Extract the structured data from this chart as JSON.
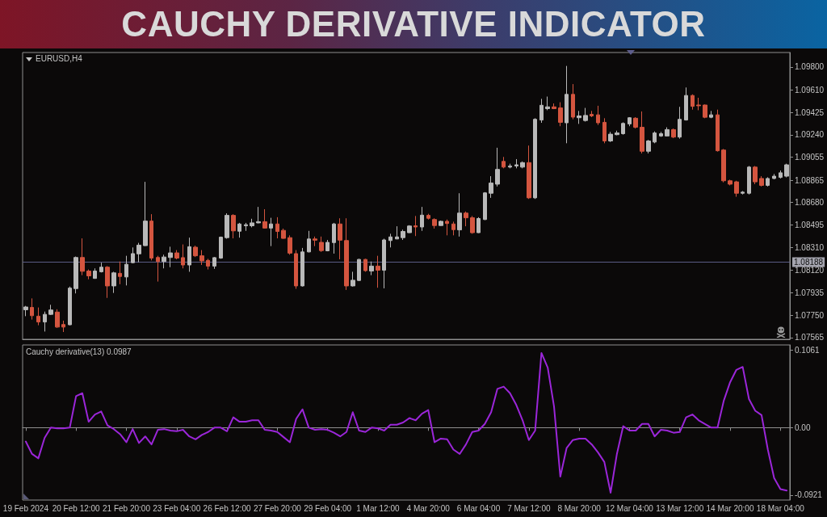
{
  "chart_data": [
    {
      "type": "candlestick",
      "title": "CAUCHY DERIVATIVE INDICATOR",
      "subtitle": "EURUSD,H4",
      "categories": [
        null,
        null,
        null,
        null,
        null,
        null,
        null,
        null,
        null,
        null,
        null,
        null,
        null,
        null,
        null,
        null,
        null,
        null,
        null,
        null,
        null,
        null,
        null,
        null,
        null,
        null,
        null,
        null,
        null,
        null,
        null,
        null,
        null,
        null,
        null,
        null,
        null,
        null,
        null,
        null,
        null,
        null,
        null,
        null,
        null,
        null,
        null,
        null,
        null,
        null,
        null,
        null,
        null,
        null,
        null,
        null,
        null,
        null,
        null,
        null,
        null,
        null,
        null,
        null,
        null,
        null,
        null,
        null,
        null,
        null,
        null,
        null,
        null,
        null,
        null,
        null,
        null,
        null,
        null,
        null,
        null,
        null,
        null,
        null,
        null,
        null,
        null,
        null,
        null,
        null,
        null,
        null,
        null,
        null,
        null,
        null,
        null,
        null,
        null,
        null,
        null,
        null,
        null,
        null,
        null,
        null,
        null,
        null,
        null,
        null,
        null,
        null,
        null,
        null,
        null,
        null,
        null,
        null,
        null,
        null,
        null,
        null
      ],
      "ohlc": [
        [
          1.07794,
          1.07826,
          1.07741,
          1.07817
        ],
        [
          1.07813,
          1.07888,
          1.07713,
          1.07745
        ],
        [
          1.07741,
          1.07813,
          1.07666,
          1.07693
        ],
        [
          1.07693,
          1.07779,
          1.07614,
          1.07756
        ],
        [
          1.07756,
          1.07835,
          1.07751,
          1.07792
        ],
        [
          1.07775,
          1.07798,
          1.07644,
          1.07651
        ],
        [
          1.07672,
          1.07704,
          1.0761,
          1.07651
        ],
        [
          1.0767,
          1.07986,
          1.07666,
          1.07973
        ],
        [
          1.07969,
          1.08234,
          1.07929,
          1.08226
        ],
        [
          1.08226,
          1.08384,
          1.0808,
          1.08112
        ],
        [
          1.08114,
          1.08127,
          1.08046,
          1.08074
        ],
        [
          1.08053,
          1.08136,
          1.0805,
          1.08114
        ],
        [
          1.08108,
          1.08183,
          1.08102,
          1.08146
        ],
        [
          1.08146,
          1.08155,
          1.07892,
          1.07991
        ],
        [
          1.07991,
          1.08108,
          1.07933,
          1.08099
        ],
        [
          1.08095,
          1.08193,
          1.08005,
          1.08069
        ],
        [
          1.08065,
          1.0824,
          1.07995,
          1.0817
        ],
        [
          1.08183,
          1.08309,
          1.08178,
          1.08258
        ],
        [
          1.08256,
          1.08347,
          1.08187,
          1.08328
        ],
        [
          1.08324,
          1.08851,
          1.0832,
          1.08527
        ],
        [
          1.08527,
          1.08584,
          1.08202,
          1.08221
        ],
        [
          1.08226,
          1.0824,
          1.08027,
          1.08193
        ],
        [
          1.08193,
          1.08249,
          1.08136,
          1.0823
        ],
        [
          1.08226,
          1.08315,
          1.08146,
          1.08264
        ],
        [
          1.08264,
          1.08287,
          1.08211,
          1.08221
        ],
        [
          1.08225,
          1.08334,
          1.08136,
          1.08164
        ],
        [
          1.08164,
          1.0839,
          1.08108,
          1.08315
        ],
        [
          1.08311,
          1.08324,
          1.0823,
          1.0824
        ],
        [
          1.0824,
          1.08287,
          1.08164,
          1.08198
        ],
        [
          1.08202,
          1.08215,
          1.08127,
          1.08155
        ],
        [
          1.08155,
          1.0823,
          1.08132,
          1.08225
        ],
        [
          1.08221,
          1.08399,
          1.08215,
          1.08394
        ],
        [
          1.0839,
          1.08591,
          1.08381,
          1.08574
        ],
        [
          1.08574,
          1.08584,
          1.08384,
          1.08446
        ],
        [
          1.08443,
          1.08512,
          1.0839,
          1.08503
        ],
        [
          1.08488,
          1.08512,
          1.08446,
          1.08497
        ],
        [
          1.08488,
          1.08546,
          1.08475,
          1.08512
        ],
        [
          1.08512,
          1.08644,
          1.08508,
          1.08522
        ],
        [
          1.08522,
          1.08625,
          1.08465,
          1.08469
        ],
        [
          1.08469,
          1.08554,
          1.0832,
          1.08503
        ],
        [
          1.08503,
          1.08559,
          1.08384,
          1.08441
        ],
        [
          1.0845,
          1.08465,
          1.08381,
          1.08384
        ],
        [
          1.0839,
          1.08409,
          1.08249,
          1.08262
        ],
        [
          1.08258,
          1.08287,
          1.07967,
          1.07991
        ],
        [
          1.07991,
          1.08305,
          1.07986,
          1.08272
        ],
        [
          1.08272,
          1.08446,
          1.08268,
          1.08379
        ],
        [
          1.08379,
          1.08399,
          1.0832,
          1.08369
        ],
        [
          1.08351,
          1.08399,
          1.08272,
          1.08283
        ],
        [
          1.08281,
          1.08371,
          1.08277,
          1.08351
        ],
        [
          1.08349,
          1.08512,
          1.08258,
          1.08503
        ],
        [
          1.08503,
          1.0855,
          1.08211,
          1.08369
        ],
        [
          1.08366,
          1.0855,
          1.07958,
          1.07991
        ],
        [
          1.07991,
          1.08108,
          1.07986,
          1.08038
        ],
        [
          1.08036,
          1.08215,
          1.08031,
          1.0821
        ],
        [
          1.0821,
          1.08215,
          1.08108,
          1.08117
        ],
        [
          1.08114,
          1.08193,
          1.0808,
          1.08155
        ],
        [
          1.08155,
          1.0824,
          1.07976,
          1.08121
        ],
        [
          1.08121,
          1.08381,
          1.07971,
          1.08371
        ],
        [
          1.08366,
          1.08422,
          1.08309,
          1.08396
        ],
        [
          1.08379,
          1.08484,
          1.08377,
          1.08396
        ],
        [
          1.0839,
          1.08456,
          1.08371,
          1.08441
        ],
        [
          1.08431,
          1.08493,
          1.08428,
          1.08486
        ],
        [
          1.08488,
          1.08569,
          1.08403,
          1.08478
        ],
        [
          1.08478,
          1.08644,
          1.08446,
          1.08576
        ],
        [
          1.08574,
          1.08587,
          1.0854,
          1.0855
        ],
        [
          1.0854,
          1.0855,
          1.08465,
          1.0849
        ],
        [
          1.0849,
          1.08531,
          1.08488,
          1.08525
        ],
        [
          1.08525,
          1.0854,
          1.08409,
          1.08507
        ],
        [
          1.08503,
          1.08522,
          1.08409,
          1.08456
        ],
        [
          1.08454,
          1.08757,
          1.08399,
          1.08593
        ],
        [
          1.08593,
          1.08606,
          1.08484,
          1.08554
        ],
        [
          1.08554,
          1.08569,
          1.08422,
          1.08431
        ],
        [
          1.08431,
          1.08559,
          1.08428,
          1.08548
        ],
        [
          1.0854,
          1.08766,
          1.08535,
          1.0876
        ],
        [
          1.08757,
          1.08898,
          1.08719,
          1.08841
        ],
        [
          1.08832,
          1.09133,
          1.08813,
          1.08954
        ],
        [
          1.0902,
          1.09057,
          1.08963,
          1.08973
        ],
        [
          1.08973,
          1.09001,
          1.08963,
          1.08982
        ],
        [
          1.08982,
          1.09039,
          1.08963,
          1.08992
        ],
        [
          1.08973,
          1.0902,
          1.08963,
          1.0901
        ],
        [
          1.0901,
          1.09151,
          1.0871,
          1.08719
        ],
        [
          1.08719,
          1.09377,
          1.0871,
          1.09368
        ],
        [
          1.09362,
          1.09537,
          1.09339,
          1.09484
        ],
        [
          1.09456,
          1.09556,
          1.09443,
          1.09471
        ],
        [
          1.09471,
          1.09499,
          1.09452,
          1.09456
        ],
        [
          1.09462,
          1.09509,
          1.09311,
          1.09343
        ],
        [
          1.09339,
          1.09809,
          1.0917,
          1.09574
        ],
        [
          1.09574,
          1.09659,
          1.09368,
          1.09386
        ],
        [
          1.09381,
          1.09437,
          1.0933,
          1.09396
        ],
        [
          1.09358,
          1.09462,
          1.09349,
          1.094
        ],
        [
          1.09409,
          1.09437,
          1.09386,
          1.09396
        ],
        [
          1.09405,
          1.0948,
          1.09321,
          1.09339
        ],
        [
          1.09343,
          1.09377,
          1.0917,
          1.09189
        ],
        [
          1.09189,
          1.09264,
          1.0918,
          1.09245
        ],
        [
          1.09241,
          1.09274,
          1.09236,
          1.09255
        ],
        [
          1.09249,
          1.09343,
          1.09241,
          1.09334
        ],
        [
          1.0933,
          1.09386,
          1.09311,
          1.09381
        ],
        [
          1.09377,
          1.09386,
          1.09292,
          1.09302
        ],
        [
          1.09302,
          1.09433,
          1.09086,
          1.09104
        ],
        [
          1.09104,
          1.09198,
          1.09086,
          1.09189
        ],
        [
          1.0918,
          1.09268,
          1.0917,
          1.09255
        ],
        [
          1.0923,
          1.09264,
          1.09223,
          1.09249
        ],
        [
          1.0923,
          1.09302,
          1.09227,
          1.09283
        ],
        [
          1.09283,
          1.09292,
          1.09212,
          1.09221
        ],
        [
          1.09221,
          1.09471,
          1.09208,
          1.09368
        ],
        [
          1.09362,
          1.09631,
          1.09358,
          1.09565
        ],
        [
          1.09565,
          1.09574,
          1.09448,
          1.09475
        ],
        [
          1.09486,
          1.09546,
          1.09443,
          1.0948
        ],
        [
          1.09486,
          1.0949,
          1.09377,
          1.09385
        ],
        [
          1.09385,
          1.09437,
          1.09377,
          1.09405
        ],
        [
          1.09405,
          1.09448,
          1.09101,
          1.09108
        ],
        [
          1.09114,
          1.09123,
          1.08847,
          1.0886
        ],
        [
          1.0886,
          1.08869,
          1.08822,
          1.08832
        ],
        [
          1.08851,
          1.0886,
          1.08728,
          1.08757
        ],
        [
          1.08757,
          1.08775,
          1.08747,
          1.08766
        ],
        [
          1.08757,
          1.08982,
          1.08747,
          1.08973
        ],
        [
          1.08973,
          1.08982,
          1.08832,
          1.08851
        ],
        [
          1.08879,
          1.08898,
          1.08813,
          1.08822
        ],
        [
          1.08822,
          1.08889,
          1.08813,
          1.08879
        ],
        [
          1.08879,
          1.08916,
          1.08873,
          1.08898
        ],
        [
          1.08888,
          1.08945,
          1.08879,
          1.08926
        ],
        [
          1.08898,
          1.09001,
          1.08888,
          1.08992
        ]
      ],
      "colors": [
        "#b9b9b9",
        "#d4553f",
        "#d4553f",
        "#b9b9b9",
        "#b9b9b9",
        "#d4553f",
        "#d4553f",
        "#b9b9b9",
        "#b9b9b9",
        "#d4553f",
        "#d4553f",
        "#b9b9b9",
        "#b9b9b9",
        "#d4553f",
        "#b9b9b9",
        "#d4553f",
        "#b9b9b9",
        "#b9b9b9",
        "#b9b9b9",
        "#b9b9b9",
        "#d4553f",
        "#d4553f",
        "#b9b9b9",
        "#b9b9b9",
        "#d4553f",
        "#d4553f",
        "#b9b9b9",
        "#d4553f",
        "#d4553f",
        "#d4553f",
        "#b9b9b9",
        "#b9b9b9",
        "#b9b9b9",
        "#d4553f",
        "#b9b9b9",
        "#b9b9b9",
        "#b9b9b9",
        "#b9b9b9",
        "#d4553f",
        "#b9b9b9",
        "#d4553f",
        "#d4553f",
        "#d4553f",
        "#d4553f",
        "#b9b9b9",
        "#b9b9b9",
        "#d4553f",
        "#d4553f",
        "#b9b9b9",
        "#b9b9b9",
        "#d4553f",
        "#d4553f",
        "#b9b9b9",
        "#b9b9b9",
        "#d4553f",
        "#b9b9b9",
        "#d4553f",
        "#b9b9b9",
        "#b9b9b9",
        "#b9b9b9",
        "#b9b9b9",
        "#b9b9b9",
        "#d4553f",
        "#b9b9b9",
        "#d4553f",
        "#d4553f",
        "#b9b9b9",
        "#d4553f",
        "#d4553f",
        "#b9b9b9",
        "#d4553f",
        "#d4553f",
        "#b9b9b9",
        "#b9b9b9",
        "#b9b9b9",
        "#b9b9b9",
        "#d4553f",
        "#b9b9b9",
        "#b9b9b9",
        "#b9b9b9",
        "#d4553f",
        "#b9b9b9",
        "#b9b9b9",
        "#b9b9b9",
        "#d4553f",
        "#d4553f",
        "#b9b9b9",
        "#d4553f",
        "#b9b9b9",
        "#b9b9b9",
        "#d4553f",
        "#d4553f",
        "#d4553f",
        "#b9b9b9",
        "#b9b9b9",
        "#b9b9b9",
        "#b9b9b9",
        "#d4553f",
        "#d4553f",
        "#b9b9b9",
        "#b9b9b9",
        "#b9b9b9",
        "#b9b9b9",
        "#d4553f",
        "#b9b9b9",
        "#b9b9b9",
        "#d4553f",
        "#d4553f",
        "#d4553f",
        "#b9b9b9",
        "#d4553f",
        "#d4553f",
        "#d4553f",
        "#d4553f",
        "#b9b9b9",
        "#b9b9b9",
        "#d4553f",
        "#d4553f",
        "#b9b9b9",
        "#b9b9b9",
        "#b9b9b9",
        "#b9b9b9"
      ],
      "ylim": [
        1.0755,
        1.0992
      ],
      "yticks": [
        {
          "value": 1.07565,
          "label": "1.07565"
        },
        {
          "value": 1.0775,
          "label": "1.07750"
        },
        {
          "value": 1.07935,
          "label": "1.07935"
        },
        {
          "value": 1.0812,
          "label": "1.08120"
        },
        {
          "value": 1.0831,
          "label": "1.08310"
        },
        {
          "value": 1.08495,
          "label": "1.08495"
        },
        {
          "value": 1.0868,
          "label": "1.08680"
        },
        {
          "value": 1.08865,
          "label": "1.08865"
        },
        {
          "value": 1.09055,
          "label": "1.09055"
        },
        {
          "value": 1.0924,
          "label": "1.09240"
        },
        {
          "value": 1.09425,
          "label": "1.09425"
        },
        {
          "value": 1.0961,
          "label": "1.09610"
        },
        {
          "value": 1.098,
          "label": "1.09800"
        }
      ],
      "ref_lines": [
        {
          "axis": "y",
          "value": 1.08188,
          "label": "1.08188",
          "color": "#5b5b85"
        }
      ]
    },
    {
      "type": "line",
      "title": "Cauchy derivative(13) 0.0987",
      "marker": "none",
      "color": "#9b26d9",
      "categories": [
        "19 Feb 2024",
        null,
        null,
        null,
        null,
        null,
        null,
        null,
        "20 Feb 12:00",
        null,
        null,
        null,
        null,
        null,
        null,
        null,
        "21 Feb 20:00",
        null,
        null,
        null,
        null,
        null,
        null,
        null,
        "23 Feb 04:00",
        null,
        null,
        null,
        null,
        null,
        null,
        null,
        "26 Feb 12:00",
        null,
        null,
        null,
        null,
        null,
        null,
        null,
        "27 Feb 20:00",
        null,
        null,
        null,
        null,
        null,
        null,
        null,
        "29 Feb 04:00",
        null,
        null,
        null,
        null,
        null,
        null,
        null,
        "1 Mar 12:00",
        null,
        null,
        null,
        null,
        null,
        null,
        null,
        "4 Mar 20:00",
        null,
        null,
        null,
        null,
        null,
        null,
        null,
        "6 Mar 04:00",
        null,
        null,
        null,
        null,
        null,
        null,
        null,
        "7 Mar 12:00",
        null,
        null,
        null,
        null,
        null,
        null,
        null,
        "8 Mar 20:00",
        null,
        null,
        null,
        null,
        null,
        null,
        null,
        "12 Mar 04:00",
        null,
        null,
        null,
        null,
        null,
        null,
        null,
        "13 Mar 12:00",
        null,
        null,
        null,
        null,
        null,
        null,
        null,
        "14 Mar 20:00",
        null,
        null,
        null,
        null,
        null,
        null,
        null,
        "18 Mar 04:00",
        null
      ],
      "values": [
        -0.019,
        -0.036,
        -0.042,
        -0.014,
        0,
        -0.001,
        -0.001,
        0,
        0.043,
        0.047,
        0.008,
        0.018,
        0.022,
        0.003,
        -0.002,
        -0.009,
        -0.02,
        -0.002,
        -0.021,
        -0.012,
        -0.023,
        -0.003,
        -0.002,
        -0.004,
        -0.005,
        -0.003,
        -0.012,
        -0.016,
        -0.01,
        -0.006,
        0,
        0,
        -0.005,
        0.014,
        0.008,
        0.008,
        0.01,
        0.01,
        -0.003,
        -0.004,
        -0.006,
        -0.013,
        -0.02,
        0.012,
        0.025,
        0,
        -0.003,
        -0.002,
        -0.003,
        -0.007,
        -0.012,
        -0.006,
        0.021,
        -0.004,
        -0.006,
        0,
        -0.001,
        -0.004,
        0.004,
        0.004,
        0.007,
        0.013,
        0.01,
        0.019,
        0.024,
        -0.02,
        -0.015,
        -0.016,
        -0.03,
        -0.036,
        -0.023,
        -0.006,
        -0.004,
        0.005,
        0.021,
        0.053,
        0.056,
        0.047,
        0.031,
        0.01,
        -0.017,
        -0.004,
        0.102,
        0.082,
        0.029,
        -0.067,
        -0.028,
        -0.017,
        -0.015,
        -0.015,
        -0.023,
        -0.034,
        -0.047,
        -0.089,
        -0.036,
        0.002,
        -0.004,
        -0.004,
        0.005,
        0.005,
        -0.012,
        -0.003,
        -0.004,
        -0.007,
        -0.006,
        0.014,
        0.018,
        0.01,
        0.005,
        0,
        0,
        0.037,
        0.062,
        0.079,
        0.083,
        0.039,
        0.023,
        0.017,
        -0.03,
        -0.069,
        -0.084,
        -0.086
      ],
      "ylim": [
        -0.099,
        0.113
      ],
      "yticks": [
        -0.0921,
        {
          "value": 0,
          "label": "0.00"
        },
        0.1061
      ]
    }
  ]
}
